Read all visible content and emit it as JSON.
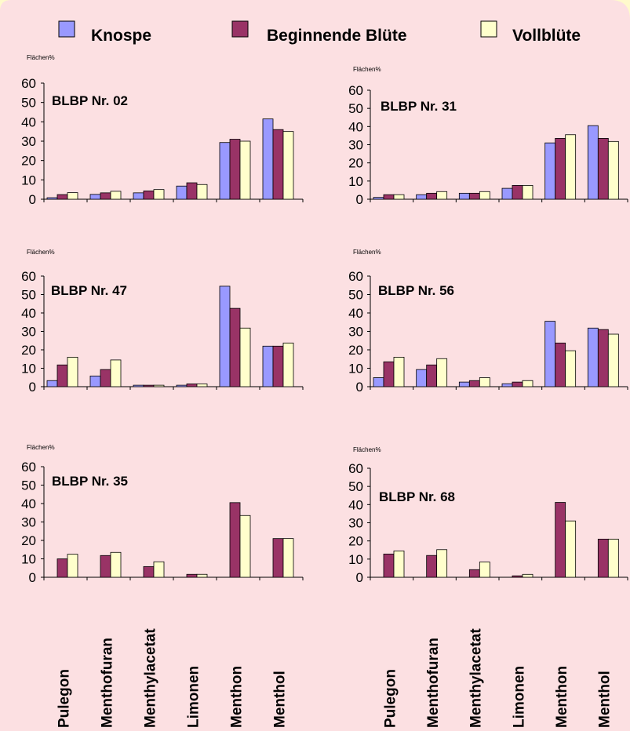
{
  "colors": {
    "outer_background": "#fffacc",
    "panel_background": "#fce0e2",
    "Knospe": "#9999ff",
    "Beginnende Blüte": "#993366",
    "Vollblüte": "#ffffcc"
  },
  "legend": [
    "Knospe",
    "Beginnende Blüte",
    "Vollblüte"
  ],
  "chart_data": [
    {
      "type": "bar",
      "title": "BLBP Nr. 02",
      "ylabel": "Flächen%",
      "ylim": [
        0,
        60
      ],
      "yticks": [
        "0",
        "10",
        "20",
        "30",
        "40",
        "50",
        "60"
      ],
      "categories": [
        "Pulegon",
        "Menthofuran",
        "Menthylacetat",
        "Limonen",
        "Menthon",
        "Menthol"
      ],
      "series": [
        {
          "name": "Knospe",
          "values": [
            0.8,
            2.5,
            3.3,
            6.8,
            29.3,
            41.5
          ]
        },
        {
          "name": "Beginnende Blüte",
          "values": [
            2.4,
            3.3,
            4.3,
            8.5,
            31,
            36
          ]
        },
        {
          "name": "Vollblüte",
          "values": [
            3.4,
            4.1,
            5,
            7.6,
            30,
            35
          ]
        }
      ]
    },
    {
      "type": "bar",
      "title": "BLBP Nr. 31",
      "ylabel": "Flächen%",
      "ylim": [
        0,
        60
      ],
      "yticks": [
        "0",
        "10",
        "20",
        "30",
        "40",
        "50",
        "60"
      ],
      "categories": [
        "Pulegon",
        "Menthofuran",
        "Menthylacetat",
        "Limonen",
        "Menthon",
        "Menthol"
      ],
      "series": [
        {
          "name": "Knospe",
          "values": [
            1,
            2.5,
            3.3,
            6,
            31,
            40.5
          ]
        },
        {
          "name": "Beginnende Blüte",
          "values": [
            2.5,
            3.3,
            3.3,
            7.6,
            33.5,
            33.5
          ]
        },
        {
          "name": "Vollblüte",
          "values": [
            2.5,
            4.2,
            4.2,
            7.6,
            35.5,
            31.8
          ]
        }
      ]
    },
    {
      "type": "bar",
      "title": "BLBP Nr. 47",
      "ylabel": "Flächen%",
      "ylim": [
        0,
        60
      ],
      "yticks": [
        "0",
        "10",
        "20",
        "30",
        "40",
        "50",
        "60"
      ],
      "categories": [
        "Pulegon",
        "Menthofuran",
        "Menthylacetat",
        "Limonen",
        "Menthon",
        "Menthol"
      ],
      "series": [
        {
          "name": "Knospe",
          "values": [
            3.3,
            5.8,
            0.8,
            0.8,
            54.5,
            22
          ]
        },
        {
          "name": "Beginnende Blüte",
          "values": [
            11.8,
            9.3,
            0.8,
            1.5,
            42.5,
            22
          ]
        },
        {
          "name": "Vollblüte",
          "values": [
            16,
            14.5,
            0.8,
            1.5,
            31.8,
            23.7
          ]
        }
      ]
    },
    {
      "type": "bar",
      "title": "BLBP Nr. 56",
      "ylabel": "Flächen%",
      "ylim": [
        0,
        60
      ],
      "yticks": [
        "0",
        "10",
        "20",
        "30",
        "40",
        "50",
        "60"
      ],
      "categories": [
        "Pulegon",
        "Menthofuran",
        "Menthylacetat",
        "Limonen",
        "Menthon",
        "Menthol"
      ],
      "series": [
        {
          "name": "Knospe",
          "values": [
            4.9,
            9.3,
            2.5,
            1.6,
            35.5,
            31.8
          ]
        },
        {
          "name": "Beginnende Blüte",
          "values": [
            13.5,
            11.8,
            3.3,
            2.5,
            23.7,
            31
          ]
        },
        {
          "name": "Vollblüte",
          "values": [
            16,
            15.2,
            4.9,
            3.3,
            19.5,
            28.5
          ]
        }
      ]
    },
    {
      "type": "bar",
      "title": "BLBP Nr. 35",
      "ylabel": "Flächen%",
      "ylim": [
        0,
        60
      ],
      "yticks": [
        "0",
        "10",
        "20",
        "30",
        "40",
        "50",
        "60"
      ],
      "categories": [
        "Pulegon",
        "Menthofuran",
        "Menthylacetat",
        "Limonen",
        "Menthon",
        "Menthol"
      ],
      "series": [
        {
          "name": "Knospe",
          "values": [
            0,
            0,
            0,
            0,
            0,
            0
          ]
        },
        {
          "name": "Beginnende Blüte",
          "values": [
            10,
            11.8,
            5.8,
            1.6,
            40.5,
            21
          ]
        },
        {
          "name": "Vollblüte",
          "values": [
            12.5,
            13.5,
            8.4,
            1.6,
            33.5,
            21
          ]
        }
      ]
    },
    {
      "type": "bar",
      "title": "BLBP Nr. 68",
      "ylabel": "Flächen%",
      "ylim": [
        0,
        60
      ],
      "yticks": [
        "0",
        "10",
        "20",
        "30",
        "40",
        "50",
        "60"
      ],
      "categories": [
        "Pulegon",
        "Menthofuran",
        "Menthylacetat",
        "Limonen",
        "Menthon",
        "Menthol"
      ],
      "series": [
        {
          "name": "Knospe",
          "values": [
            0,
            0,
            0,
            0,
            0,
            0
          ]
        },
        {
          "name": "Beginnende Blüte",
          "values": [
            12.8,
            12,
            4.2,
            0.8,
            41.2,
            21
          ]
        },
        {
          "name": "Vollblüte",
          "values": [
            14.5,
            15.2,
            8.4,
            1.6,
            31,
            21
          ]
        }
      ]
    }
  ]
}
